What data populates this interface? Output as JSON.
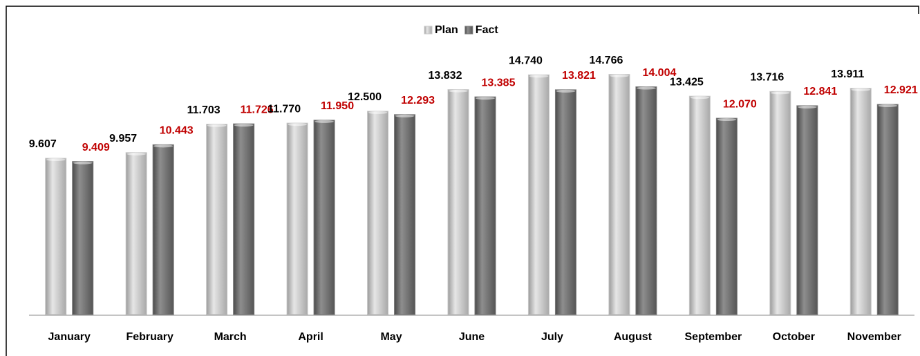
{
  "chart_data": {
    "type": "bar",
    "categories": [
      "January",
      "February",
      "March",
      "April",
      "May",
      "June",
      "July",
      "August",
      "September",
      "October",
      "November"
    ],
    "series": [
      {
        "name": "Plan",
        "color": "#c8c8c8",
        "label_color": "#000000",
        "values": [
          9.607,
          9.957,
          11.703,
          11.77,
          12.5,
          13.832,
          14.74,
          14.766,
          13.425,
          13.716,
          13.911
        ],
        "value_labels": [
          "9.607",
          "9.957",
          "11.703",
          "11.770",
          "12.500",
          "13.832",
          "14.740",
          "14.766",
          "13.425",
          "13.716",
          "13.911"
        ]
      },
      {
        "name": "Fact",
        "color": "#7a7a7a",
        "label_color": "#c00000",
        "values": [
          9.409,
          10.443,
          11.726,
          11.95,
          12.293,
          13.385,
          13.821,
          14.004,
          12.07,
          12.841,
          12.921
        ],
        "value_labels": [
          "9.409",
          "10.443",
          "11.726",
          "11.950",
          "12.293",
          "13.385",
          "13.821",
          "14.004",
          "12.070",
          "12.841",
          "12.921"
        ]
      }
    ],
    "ylim": [
      0,
      19
    ],
    "legend": "top"
  }
}
